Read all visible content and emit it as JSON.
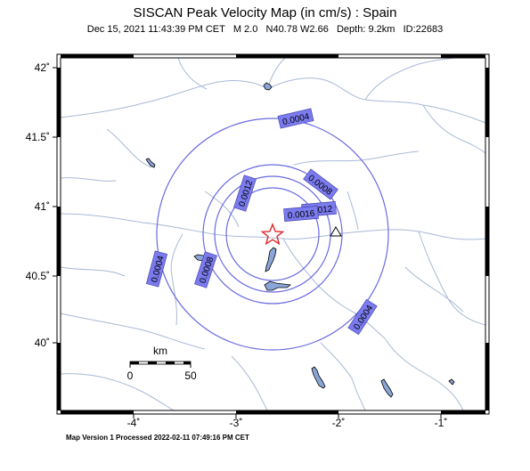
{
  "header": {
    "title": "SISCAN Peak Velocity Map (in cm/s) : Spain",
    "subtitle": "Dec 15, 2021 11:43:39 PM CET   M 2.0   N40.78 W2.66   Depth: 9.2km   ID:22683"
  },
  "footer": {
    "text": "Map Version 1 Processed 2022-02-11 07:49:16 PM CET"
  },
  "axes": {
    "lon_labels": [
      "-4˚",
      "-3˚",
      "-2˚",
      "-1˚"
    ],
    "lat_labels": [
      "42˚",
      "41.5˚",
      "41˚",
      "40.5˚",
      "40˚"
    ]
  },
  "contours": {
    "labels": [
      "0.0004",
      "0.0004",
      "0.0004",
      "0.0008",
      "0.0008",
      "0.0012",
      "0.0012",
      "0.0016"
    ]
  },
  "scale_bar": {
    "title": "km",
    "start": "0",
    "end": "50"
  },
  "colors": {
    "contour": "#6a6ae0",
    "label_box": "#7b7bef",
    "river": "#a9b9d6",
    "lake": "#8aa6d8",
    "epicenter": "#e0262a"
  },
  "markers": {
    "epicenter": "star-icon",
    "station": "triangle-icon"
  }
}
